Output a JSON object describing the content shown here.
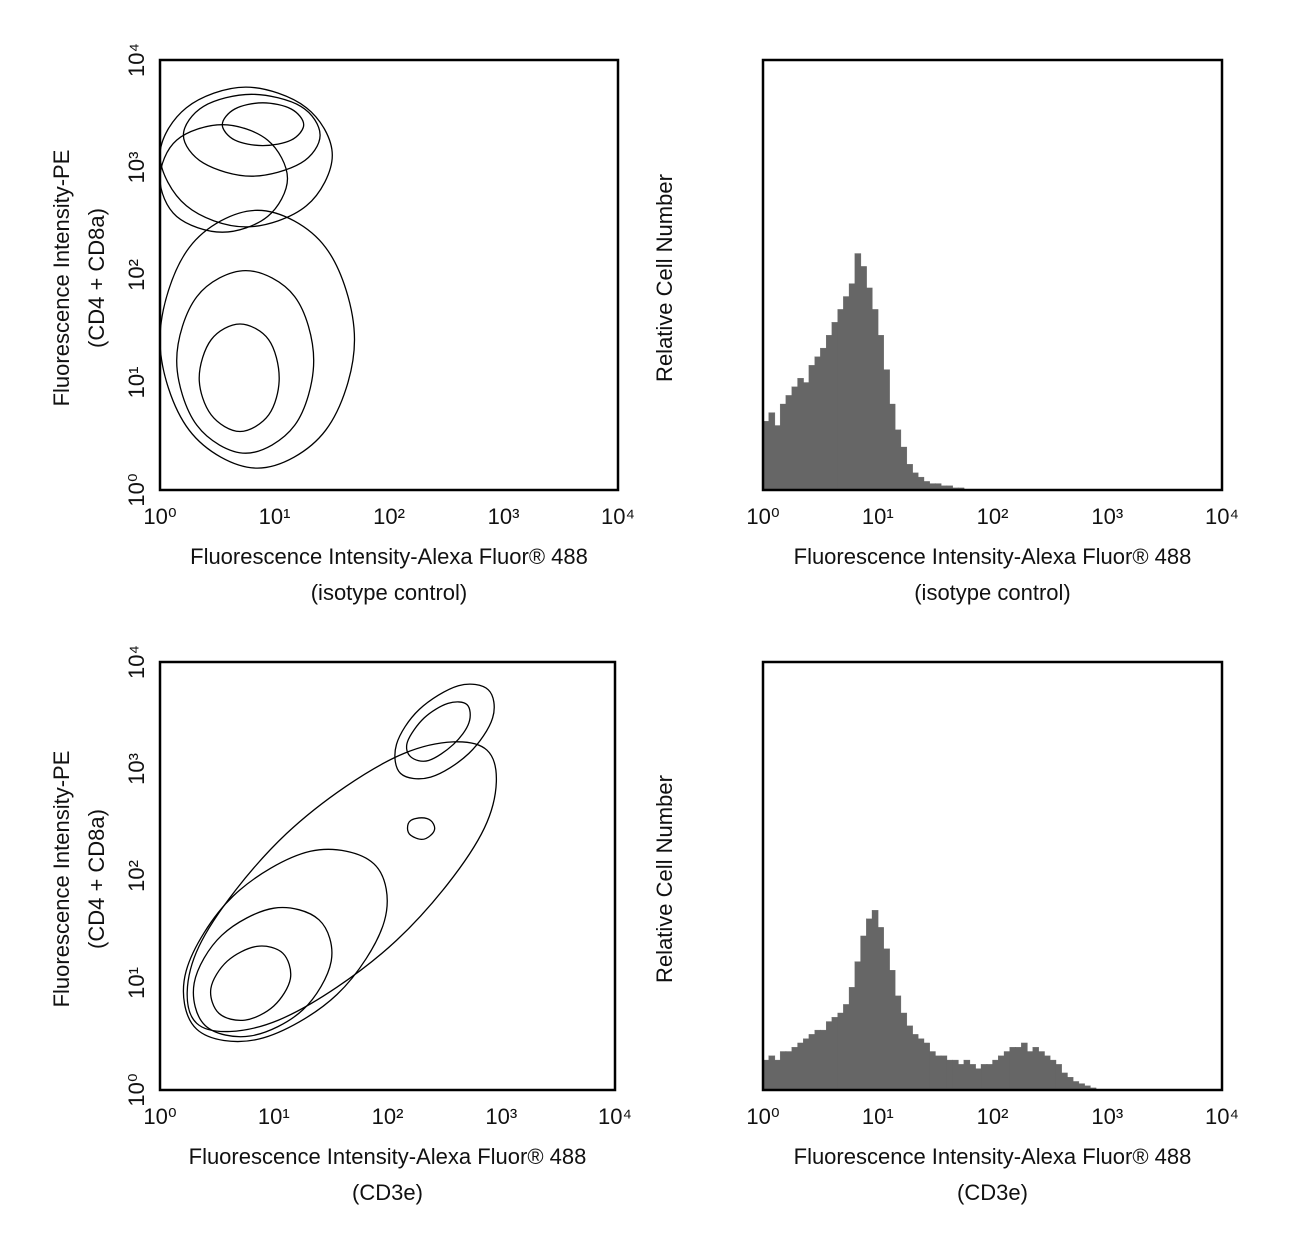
{
  "chart_data": [
    {
      "type": "contour",
      "xlabel": [
        "Fluorescence Intensity-Alexa Fluor® 488",
        "(isotype control)"
      ],
      "ylabel": [
        "Fluorescence Intensity-PE",
        "(CD4 + CD8a)"
      ],
      "xscale": "log",
      "yscale": "log",
      "color": "#000000",
      "xlim": [
        1,
        10000
      ],
      "ylim": [
        1,
        10000
      ],
      "xticks": [
        {
          "value": 1,
          "label": "10⁰"
        },
        {
          "value": 10,
          "label": "10¹"
        },
        {
          "value": 100,
          "label": "10²"
        },
        {
          "value": 1000,
          "label": "10³"
        },
        {
          "value": 10000,
          "label": "10⁴"
        }
      ],
      "yticks": [
        {
          "value": 1,
          "label": "10⁰"
        },
        {
          "value": 10,
          "label": "10¹"
        },
        {
          "value": 100,
          "label": "10²"
        },
        {
          "value": 1000,
          "label": "10³"
        },
        {
          "value": 10000,
          "label": "10⁴"
        }
      ],
      "contours": [
        {
          "x": [
            11,
            8.9,
            5.0,
            2.8,
            2.2,
            2.8,
            5.0,
            8.9
          ],
          "y": [
            11,
            25,
            35,
            25,
            11,
            5.0,
            3.5,
            5.0
          ]
        },
        {
          "x": [
            22,
            15,
            5.6,
            2.1,
            1.4,
            2.1,
            5.6,
            15
          ],
          "y": [
            16,
            63,
            110,
            63,
            16,
            4.0,
            2.2,
            4.0
          ]
        },
        {
          "x": [
            50,
            28,
            7.1,
            1.8,
            1,
            1.8,
            7.1,
            28
          ],
          "y": [
            25,
            180,
            400,
            180,
            25,
            3.6,
            1.6,
            3.6
          ]
        },
        {
          "x": [
            18,
            14,
            7.9,
            4.5,
            3.5,
            4.5,
            7.9,
            14
          ],
          "y": [
            2500,
            3500,
            4000,
            3500,
            2500,
            1800,
            1600,
            1800
          ]
        },
        {
          "x": [
            25,
            17,
            6.3,
            2.4,
            1.6,
            2.4,
            6.3,
            17
          ],
          "y": [
            2000,
            3700,
            4800,
            3700,
            2000,
            1100,
            830,
            1100
          ]
        },
        {
          "x": [
            13,
            8.7,
            3.5,
            1.4,
            1,
            1.4,
            3.5,
            8.7
          ],
          "y": [
            790,
            1800,
            2500,
            1800,
            790,
            350,
            250,
            350
          ]
        },
        {
          "x": [
            32,
            19,
            5.6,
            1.7,
            1,
            1.7,
            5.6,
            19
          ],
          "y": [
            1300,
            3600,
            5600,
            3600,
            1300,
            440,
            280,
            440
          ]
        }
      ]
    },
    {
      "type": "histogram",
      "xlabel": [
        "Fluorescence Intensity-Alexa Fluor® 488",
        "(isotype control)"
      ],
      "ylabel": [
        "Relative Cell Number"
      ],
      "xscale": "log",
      "color": "#666666",
      "xlim": [
        1,
        10000
      ],
      "ylim": [
        0,
        100
      ],
      "xticks": [
        {
          "value": 1,
          "label": "10⁰"
        },
        {
          "value": 10,
          "label": "10¹"
        },
        {
          "value": 100,
          "label": "10²"
        },
        {
          "value": 1000,
          "label": "10³"
        },
        {
          "value": 10000,
          "label": "10⁴"
        }
      ],
      "bins": [
        1,
        1.12,
        1.26,
        1.41,
        1.58,
        1.78,
        2.0,
        2.24,
        2.51,
        2.82,
        3.16,
        3.55,
        3.98,
        4.47,
        5.01,
        5.62,
        6.31,
        7.08,
        7.94,
        8.91,
        10,
        11.2,
        12.6,
        14.1,
        15.8,
        17.8,
        20.0,
        22.4,
        25.1,
        28.2,
        31.6,
        35.5,
        39.8,
        44.7,
        50.1,
        56.2
      ],
      "counts": [
        16,
        18,
        15,
        20,
        22,
        24,
        26,
        25,
        29,
        31,
        33,
        36,
        39,
        42,
        45,
        48,
        55,
        52,
        47,
        42,
        36,
        28,
        20,
        14,
        10,
        6,
        4,
        3,
        2,
        1.5,
        1.5,
        1,
        1,
        0.5,
        0.5
      ]
    },
    {
      "type": "contour",
      "xlabel": [
        "Fluorescence Intensity-Alexa Fluor® 488",
        "(CD3e)"
      ],
      "ylabel": [
        "Fluorescence Intensity-PE",
        "(CD4 + CD8a)"
      ],
      "xscale": "log",
      "yscale": "log",
      "color": "#000000",
      "xlim": [
        1,
        10000
      ],
      "ylim": [
        1,
        10000
      ],
      "xticks": [
        {
          "value": 1,
          "label": "10⁰"
        },
        {
          "value": 10,
          "label": "10¹"
        },
        {
          "value": 100,
          "label": "10²"
        },
        {
          "value": 1000,
          "label": "10³"
        },
        {
          "value": 10000,
          "label": "10⁴"
        }
      ],
      "yticks": [
        {
          "value": 1,
          "label": "10⁰"
        },
        {
          "value": 10,
          "label": "10¹"
        },
        {
          "value": 100,
          "label": "10²"
        },
        {
          "value": 1000,
          "label": "10³"
        },
        {
          "value": 10000,
          "label": "10⁴"
        }
      ],
      "contours": [
        {
          "x": [
            12,
            7.1,
            3.9,
            2.8,
            3.3,
            5.6,
            10,
            14
          ],
          "y": [
            19,
            22,
            16,
            8.9,
            5.2,
            4.5,
            6.1,
            11
          ]
        },
        {
          "x": [
            25,
            10,
            3.5,
            2.0,
            2.5,
            6.3,
            18,
            32
          ],
          "y": [
            39,
            50,
            28,
            10,
            4.0,
            3.2,
            5.6,
            16
          ]
        },
        {
          "x": [
            76,
            21,
            4.4,
            1.7,
            2.1,
            7.5,
            36,
            94
          ],
          "y": [
            130,
            170,
            65,
            13,
            3.7,
            3.0,
            7.8,
            38
          ]
        },
        {
          "x": [
            750,
            140,
            13,
            2.2,
            2.1,
            11,
            120,
            710
          ],
          "y": [
            1500,
            1400,
            250,
            22,
            4.2,
            4.5,
            25,
            280
          ]
        },
        {
          "x": [
            500,
            340,
            210,
            150,
            160,
            230,
            380,
            520
          ],
          "y": [
            4000,
            4100,
            3000,
            1800,
            1300,
            1200,
            1700,
            2700
          ]
        },
        {
          "x": [
            770,
            420,
            190,
            120,
            130,
            240,
            520,
            840
          ],
          "y": [
            5500,
            6000,
            3600,
            1700,
            910,
            840,
            1400,
            3000
          ]
        },
        {
          "x": [
            260,
            240,
            200,
            160,
            150,
            160,
            200,
            240
          ],
          "y": [
            280,
            330,
            350,
            330,
            280,
            240,
            220,
            240
          ]
        }
      ]
    },
    {
      "type": "histogram",
      "xlabel": [
        "Fluorescence Intensity-Alexa Fluor® 488",
        "(CD3e)"
      ],
      "ylabel": [
        "Relative Cell Number"
      ],
      "xscale": "log",
      "color": "#666666",
      "xlim": [
        1,
        10000
      ],
      "ylim": [
        0,
        100
      ],
      "xticks": [
        {
          "value": 1,
          "label": "10⁰"
        },
        {
          "value": 10,
          "label": "10¹"
        },
        {
          "value": 100,
          "label": "10²"
        },
        {
          "value": 1000,
          "label": "10³"
        },
        {
          "value": 10000,
          "label": "10⁴"
        }
      ],
      "bins": [
        1,
        1.12,
        1.26,
        1.41,
        1.58,
        1.78,
        2.0,
        2.24,
        2.51,
        2.82,
        3.16,
        3.55,
        3.98,
        4.47,
        5.01,
        5.62,
        6.31,
        7.08,
        7.94,
        8.91,
        10,
        11.2,
        12.6,
        14.1,
        15.8,
        17.8,
        20.0,
        22.4,
        25.1,
        28.2,
        31.6,
        35.5,
        39.8,
        44.7,
        50.1,
        56.2,
        63.1,
        70.8,
        79.4,
        89.1,
        100,
        112,
        126,
        141,
        158,
        178,
        200,
        224,
        251,
        282,
        316,
        355,
        398,
        447,
        501,
        562,
        631,
        708,
        794
      ],
      "counts": [
        7,
        8,
        7,
        9,
        9,
        10,
        11,
        12,
        13,
        14,
        14,
        16,
        17,
        18,
        20,
        24,
        30,
        36,
        40,
        42,
        38,
        33,
        28,
        22,
        18,
        15,
        13,
        12,
        11,
        9,
        8,
        8,
        7,
        7,
        6,
        7,
        6,
        5,
        6,
        6,
        7,
        8,
        9,
        10,
        10,
        11,
        9,
        10,
        9,
        8,
        7,
        6,
        4,
        3,
        2,
        1.5,
        1,
        0.5
      ]
    }
  ]
}
